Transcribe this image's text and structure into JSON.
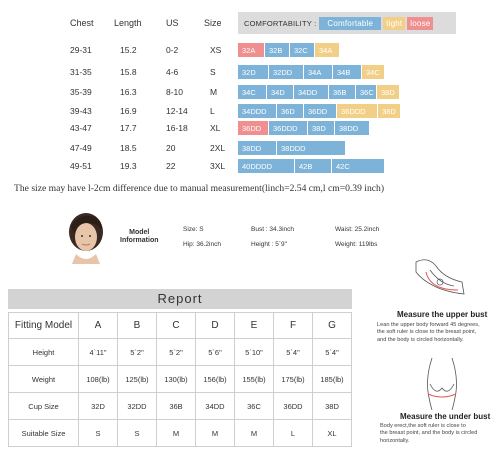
{
  "chart": {
    "headers": [
      "Chest",
      "Length",
      "US",
      "Size"
    ],
    "comfortability": {
      "label": "COMFORTABILITY :",
      "levels": [
        {
          "label": "Comfortable",
          "color": "#7db3d8"
        },
        {
          "label": "tight",
          "color": "#f2cf86"
        },
        {
          "label": "loose",
          "color": "#ef8f8f"
        }
      ]
    },
    "rows": [
      {
        "chest": "29-31",
        "length": "15.2",
        "us": "0-2",
        "size": "XS",
        "bars": [
          {
            "t": "32A",
            "c": "#ef8f8f",
            "w": 26
          },
          {
            "t": "32B",
            "c": "#7db3d8",
            "w": 24
          },
          {
            "t": "32C",
            "c": "#7db3d8",
            "w": 24
          },
          {
            "t": "34A",
            "c": "#f2cf86",
            "w": 24
          }
        ]
      },
      {
        "chest": "31-35",
        "length": "15.8",
        "us": "4-6",
        "size": "S",
        "bars": [
          {
            "t": "32D",
            "c": "#7db3d8",
            "w": 30
          },
          {
            "t": "32DD",
            "c": "#7db3d8",
            "w": 34
          },
          {
            "t": "34A",
            "c": "#7db3d8",
            "w": 28
          },
          {
            "t": "34B",
            "c": "#7db3d8",
            "w": 28
          },
          {
            "t": "34C",
            "c": "#f2cf86",
            "w": 22
          }
        ]
      },
      {
        "chest": "35-39",
        "length": "16.3",
        "us": "8-10",
        "size": "M",
        "bars": [
          {
            "t": "34C",
            "c": "#7db3d8",
            "w": 28
          },
          {
            "t": "34D",
            "c": "#7db3d8",
            "w": 26
          },
          {
            "t": "34DD",
            "c": "#7db3d8",
            "w": 34
          },
          {
            "t": "36B",
            "c": "#7db3d8",
            "w": 26
          },
          {
            "t": "36C",
            "c": "#7db3d8",
            "w": 20
          },
          {
            "t": "38D",
            "c": "#f2cf86",
            "w": 22
          }
        ]
      },
      {
        "chest": "39-43",
        "length": "16.9",
        "us": "12-14",
        "size": "L",
        "bars": [
          {
            "t": "34DDD",
            "c": "#7db3d8",
            "w": 38
          },
          {
            "t": "36D",
            "c": "#7db3d8",
            "w": 26
          },
          {
            "t": "36DD",
            "c": "#7db3d8",
            "w": 32
          },
          {
            "t": "36DDD",
            "c": "#f2cf86",
            "w": 40
          },
          {
            "t": "38D",
            "c": "#f2cf86",
            "w": 22
          }
        ]
      },
      {
        "chest": "43-47",
        "length": "17.7",
        "us": "16-18",
        "size": "XL",
        "bars": [
          {
            "t": "36DD",
            "c": "#ef8f8f",
            "w": 30
          },
          {
            "t": "36DDD",
            "c": "#7db3d8",
            "w": 38
          },
          {
            "t": "38D",
            "c": "#7db3d8",
            "w": 26
          },
          {
            "t": "38DD",
            "c": "#7db3d8",
            "w": 34
          }
        ]
      },
      {
        "chest": "47-49",
        "length": "18.5",
        "us": "20",
        "size": "2XL",
        "bars": [
          {
            "t": "38DD",
            "c": "#7db3d8",
            "w": 38
          },
          {
            "t": "38DDD",
            "c": "#7db3d8",
            "w": 68
          }
        ]
      },
      {
        "chest": "49-51",
        "length": "19.3",
        "us": "22",
        "size": "3XL",
        "bars": [
          {
            "t": "40DDDD",
            "c": "#7db3d8",
            "w": 56
          },
          {
            "t": "42B",
            "c": "#7db3d8",
            "w": 36
          },
          {
            "t": "42C",
            "c": "#7db3d8",
            "w": 52
          }
        ]
      }
    ],
    "note": "The size may have l-2cm difference due to manual measurement(linch=2.54 cm,l cm=0.39 inch)"
  },
  "model": {
    "title_line1": "Model",
    "title_line2": "Information",
    "size": "Size: S",
    "bust": "Bust : 34.3inch",
    "waist": "Waist:  25.2inch",
    "hip": "Hip: 36.2inch",
    "height": "Height : 5`9\"",
    "weight": "Weight:  119lbs"
  },
  "report": {
    "title": "Report",
    "columns": [
      "A",
      "B",
      "C",
      "D",
      "E",
      "F",
      "G"
    ],
    "rows": [
      {
        "label": "Fitting Model",
        "values": [
          "A",
          "B",
          "C",
          "D",
          "E",
          "F",
          "G"
        ],
        "header": true
      },
      {
        "label": "Height",
        "values": [
          "4`11\"",
          "5`2\"",
          "5`2\"",
          "5`6\"",
          "5`10\"",
          "5`4\"",
          "5`4\""
        ]
      },
      {
        "label": "Weight",
        "values": [
          "108(lb)",
          "125(lb)",
          "130(lb)",
          "156(lb)",
          "155(lb)",
          "175(lb)",
          "185(lb)"
        ]
      },
      {
        "label": "Cup Size",
        "values": [
          "32D",
          "32DD",
          "36B",
          "34DD",
          "36C",
          "36DD",
          "38D"
        ]
      },
      {
        "label": "Suitable Size",
        "values": [
          "S",
          "S",
          "M",
          "M",
          "M",
          "L",
          "XL"
        ]
      }
    ]
  },
  "measure": {
    "upper_title": "Measure the upper bust",
    "upper_text": [
      "Lean the upper body forward 45 degrees,",
      "the soft ruler is close to the breast point,",
      "and the body is circled horizontally."
    ],
    "under_title": "Measure the under bust",
    "under_text": [
      "Body erect,the soft ruler is close to",
      "the  breast  point,  and the body is circled",
      "horizontally."
    ]
  }
}
